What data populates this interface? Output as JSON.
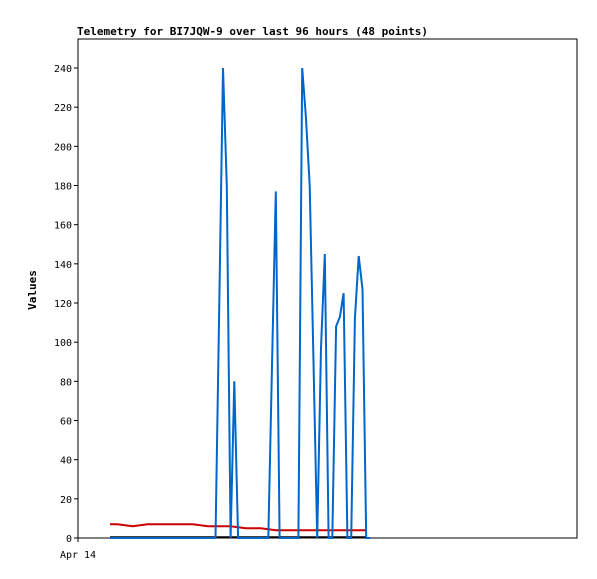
{
  "chart_data": {
    "type": "line",
    "title": "Telemetry for BI7JQW-9 over last 96 hours (48 points)",
    "ylabel": "Values",
    "xlabel": "",
    "ylim": [
      0,
      250
    ],
    "yticks": [
      0,
      20,
      40,
      60,
      80,
      100,
      120,
      140,
      160,
      180,
      200,
      220,
      240
    ],
    "xtick_labels": [
      "Apr 14"
    ],
    "grid": false,
    "legend": "none",
    "x_domain": [
      0,
      96
    ],
    "series": [
      {
        "color": "#0066cc",
        "x": [
          0,
          2,
          4,
          6,
          8,
          10,
          12,
          14,
          16,
          18,
          20,
          22,
          24,
          26,
          28,
          29,
          30,
          31,
          32,
          33,
          34,
          35,
          36,
          37,
          38,
          39,
          40,
          41,
          42,
          43,
          44,
          45,
          46,
          47,
          48,
          49,
          50,
          51,
          52,
          53,
          54,
          55,
          56,
          57,
          58,
          59,
          60,
          61,
          62,
          63,
          64,
          65,
          66,
          67,
          68,
          69
        ],
        "y": [
          0,
          0,
          0,
          0,
          0,
          0,
          0,
          0,
          0,
          0,
          0,
          0,
          0,
          0,
          0,
          120,
          240,
          180,
          0,
          80,
          0,
          0,
          0,
          0,
          0,
          0,
          0,
          0,
          0,
          88,
          177,
          0,
          0,
          0,
          0,
          0,
          0,
          240,
          215,
          180,
          90,
          0,
          97,
          145,
          0,
          0,
          108,
          113,
          125,
          0,
          0,
          112,
          144,
          127,
          0,
          0
        ],
        "values_note": ""
      },
      {
        "color": "#cc0000",
        "x": [
          0,
          2,
          4,
          6,
          8,
          10,
          12,
          14,
          16,
          18,
          20,
          22,
          24,
          26,
          28,
          30,
          32,
          34,
          36,
          38,
          40,
          42,
          44,
          46,
          48,
          50,
          52,
          54,
          56,
          58,
          60,
          62,
          64,
          66,
          68
        ],
        "y": [
          7,
          7,
          6.5,
          6,
          6.5,
          7,
          7,
          7,
          7,
          7,
          7,
          7,
          6.5,
          6,
          6,
          6,
          6,
          5.5,
          5,
          5,
          5,
          4.5,
          4,
          4,
          4,
          4,
          4,
          4,
          4,
          4,
          4,
          4,
          4,
          4,
          4
        ]
      },
      {
        "color": "#000000",
        "x": [
          0,
          68
        ],
        "y": [
          0.5,
          0.5
        ]
      }
    ]
  }
}
